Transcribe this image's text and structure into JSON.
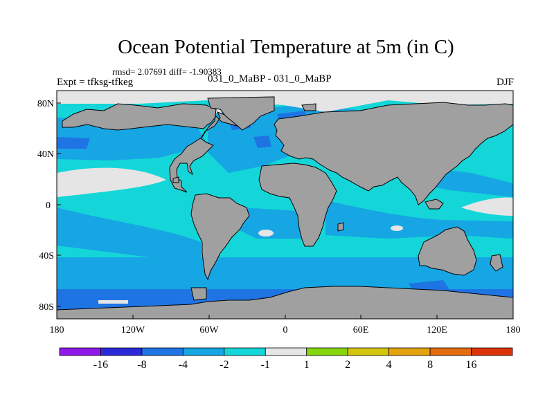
{
  "header": {
    "title": "Ocean Potential Temperature at 5m (in C)",
    "stats": "rmsd= 2.07691 diff= -1.90383",
    "case": "031_0_MaBP - 031_0_MaBP",
    "experiment": "Expt = tfksg-tfkeg",
    "season": "DJF"
  },
  "axes": {
    "lat_ticks": [
      "80N",
      "40N",
      "0",
      "40S",
      "80S"
    ],
    "lon_ticks": [
      "180",
      "120W",
      "60W",
      "0",
      "60E",
      "120E",
      "180"
    ]
  },
  "colorbar": {
    "colors": [
      "#8f18e8",
      "#2c29d9",
      "#1f74e4",
      "#16a6e4",
      "#14d6d8",
      "#e5e5e5",
      "#86d60d",
      "#d6c60b",
      "#e4a20e",
      "#e26c0e",
      "#de3308"
    ],
    "labels": [
      "-16",
      "-8",
      "-4",
      "-2",
      "-1",
      "1",
      "2",
      "4",
      "8",
      "16"
    ]
  },
  "palette": {
    "ocean_base": "#14d6d8",
    "cool": "#16a6e4",
    "colder": "#1f74e4",
    "near_zero": "#e5e5e5",
    "land": "#a0a0a0"
  }
}
